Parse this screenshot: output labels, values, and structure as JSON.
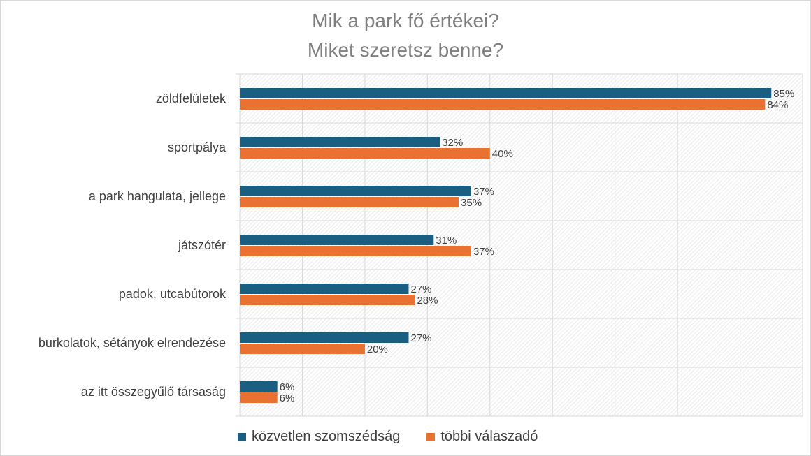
{
  "chart_data": {
    "type": "bar",
    "orientation": "horizontal",
    "title": [
      "Mik a park fő értékei?",
      "Miket szeretsz benne?"
    ],
    "categories": [
      "zöldfelületek",
      "sportpálya",
      "a park hangulata, jellege",
      "játszótér",
      "padok, utcabútorok",
      "burkolatok, sétányok elrendezése",
      "az itt összegyűlő társaság"
    ],
    "series": [
      {
        "name": "közvetlen szomszédság",
        "color": "#1a5e82",
        "values": [
          85,
          32,
          37,
          31,
          27,
          27,
          6
        ]
      },
      {
        "name": "többi válaszadó",
        "color": "#e97132",
        "values": [
          84,
          40,
          35,
          37,
          28,
          20,
          6
        ]
      }
    ],
    "value_suffix": "%",
    "xlim": [
      0,
      90
    ],
    "grid": true,
    "legend": "bottom"
  }
}
